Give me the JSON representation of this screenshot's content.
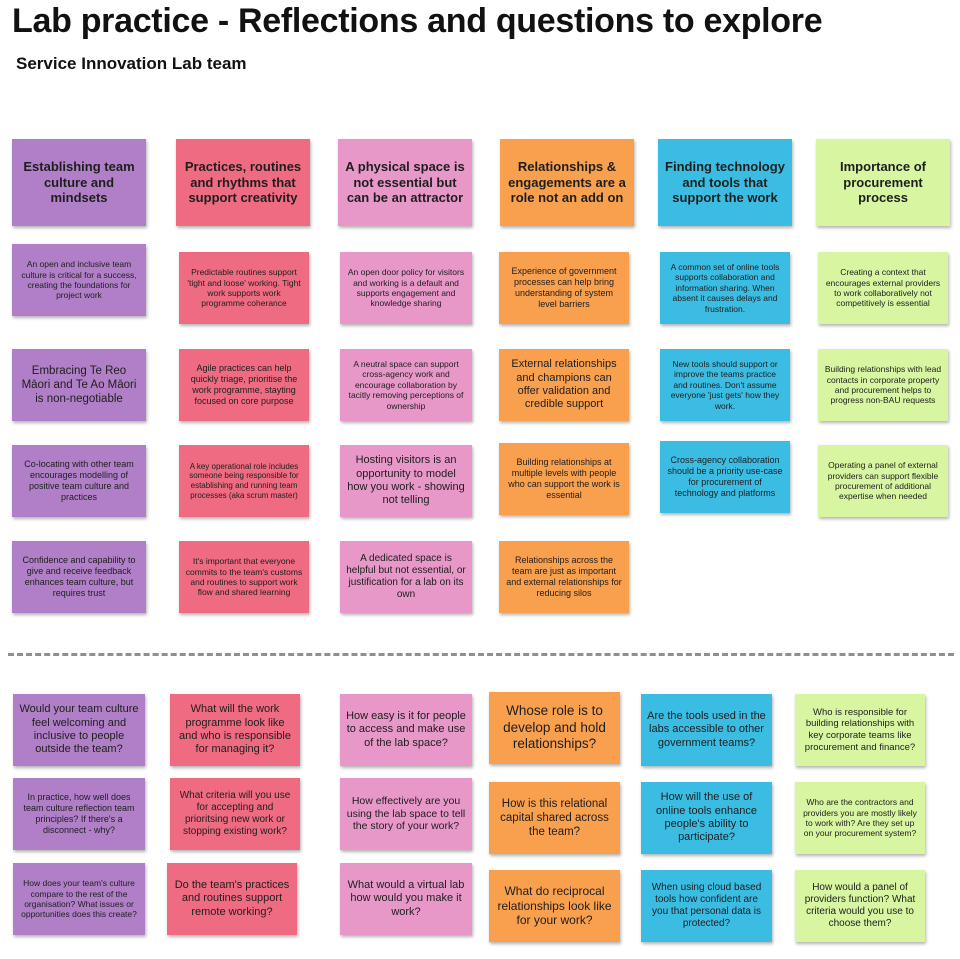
{
  "title": "Lab practice -  Reflections and questions to explore",
  "subtitle": "Service Innovation Lab team",
  "colors": {
    "purple": "#b07fc7",
    "red": "#ef6b82",
    "pink": "#e897c9",
    "orange": "#f9a04f",
    "blue": "#3bbde3",
    "green": "#d8f5a2"
  },
  "columns": [
    {
      "color": "purple",
      "header": "Establishing team culture and mindsets",
      "reflections": [
        "An open and inclusive team culture is critical for a success, creating the foundations for project work",
        "Embracing Te Reo Māori and Te Ao Māori  is  non-negotiable",
        "Co-locating with other  team  encourages modelling of positive team culture and practices",
        "Confidence and capability to give and receive feedback enhances team culture, but requires trust"
      ],
      "questions": [
        "Would your team culture feel welcoming and inclusive to people outside the team?",
        "In practice, how well does team culture reflection team principles? If there's a disconnect - why?",
        "How does your team's culture compare to the rest of the organisation? What issues or opportunities does this create?"
      ]
    },
    {
      "color": "red",
      "header": "Practices, routines and rhythms that support creativity",
      "reflections": [
        "Predictable routines  support 'tight and loose' working. Tight work supports work programme coherance",
        "Agile practices can help quickly triage, prioritise the work programme, stayting focused on core purpose",
        "A key operational role includes  someone being responsible for establishing and running  team processes (aka scrum master)",
        "It's important that everyone commits to the team's customs and routines to support work flow and shared learning"
      ],
      "questions": [
        "What will the work programme look like and who is responsible for managing it?",
        "What criteria will you use for accepting and prioritsing new work or stopping existing work?",
        "Do the team's practices and routines support remote working?"
      ]
    },
    {
      "color": "pink",
      "header": "A physical space is not essential but can be an attractor",
      "reflections": [
        "An open door policy for visitors and working is a default and supports engagement and knowledge sharing",
        "A neutral space can support cross-agency work and encourage collaboration by tacitly removing perceptions of ownership",
        "Hosting visitors is an opportunity to model how you work - showing not telling",
        "A dedicated space is helpful but not essential, or justification for a lab on its own"
      ],
      "questions": [
        "How easy is it for people to access and make use of the lab space?",
        "How effectively are you using the lab space to tell the story of your work?",
        "What would a virtual lab how would you make it work?"
      ]
    },
    {
      "color": "orange",
      "header": "Relationships & engagements are a role not an add on",
      "reflections": [
        "Experience of government processes can help bring understanding of system level barriers",
        "External relationships and champions can offer   validation and credible support",
        "Building relationships  at multiple levels with people who can support the work is  essential",
        "Relationships across the team  are just as important and external relationships for reducing silos"
      ],
      "questions": [
        "Whose role is to develop and hold relationships?",
        "How is this relational capital shared across the team?",
        "What do reciprocal relationships look like for your work?"
      ]
    },
    {
      "color": "blue",
      "header": "Finding technology and tools that support the work",
      "reflections": [
        "A common set of online tools supports collaboration and information sharing. When absent it causes delays and frustration.",
        "New tools should support or improve the teams practice and routines. Don't assume everyone 'just gets' how they work.",
        "Cross-agency collaboration should be a priority use-case for procurement of technology and platforms"
      ],
      "questions": [
        "Are the tools used in the labs accessible to other government teams?",
        "How will the use of online tools enhance people's ability to participate?",
        "When using cloud based tools how confident are you that personal data is protected?"
      ]
    },
    {
      "color": "green",
      "header": "Importance of procurement process",
      "reflections": [
        "Creating a context that encourages external providers to work collaboratively not competitively is essential",
        "Building relationships with lead contacts in corporate property and procurement helps to progress non-BAU requests",
        "Operating a panel of external providers can  support flexible procurement of additional expertise when needed"
      ],
      "questions": [
        "Who is responsible for building relationships with key corporate teams like procurement and finance?",
        "Who are the contractors and providers you are mostly likely to work with? Are they set up on your procurement system?",
        "How would a panel of providers function? What criteria would you use to choose them?"
      ]
    }
  ]
}
